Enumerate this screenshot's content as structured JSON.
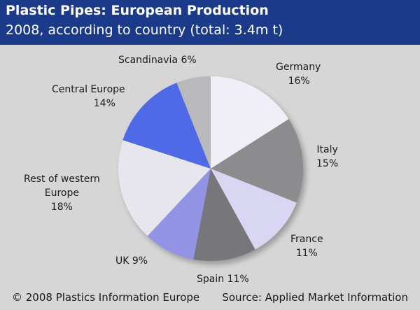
{
  "header": {
    "title": "Plastic Pipes: European Production",
    "subtitle": "2008, according to country (total: 3.4m t)"
  },
  "footer": {
    "copyright": "© 2008 Plastics Information Europe",
    "source": "Source: Applied Market Information"
  },
  "chart_data": {
    "type": "pie",
    "title": "Plastic Pipes: European Production",
    "subtitle": "2008, according to country (total: 3.4m t)",
    "unit": "%",
    "slices": [
      {
        "name": "Germany",
        "value": 16,
        "label_line1": "Germany",
        "label_line2": "16%",
        "color": "#f0eff7"
      },
      {
        "name": "Italy",
        "value": 15,
        "label_line1": "Italy",
        "label_line2": "15%",
        "color": "#8c8c8e"
      },
      {
        "name": "France",
        "value": 11,
        "label_line1": "France",
        "label_line2": "11%",
        "color": "#d9d6f4"
      },
      {
        "name": "Spain",
        "value": 11,
        "label_line1": "Spain 11%",
        "label_line2": "",
        "color": "#77767a"
      },
      {
        "name": "UK",
        "value": 9,
        "label_line1": "UK 9%",
        "label_line2": "",
        "color": "#9393e6"
      },
      {
        "name": "Rest of western Europe",
        "value": 18,
        "label_line1": "Rest of western",
        "label_line2": "Europe",
        "label_line3": "18%",
        "color": "#e6e6ec"
      },
      {
        "name": "Central Europe",
        "value": 14,
        "label_line1": "Central Europe",
        "label_line2": "14%",
        "color": "#4e6ae6"
      },
      {
        "name": "Scandinavia",
        "value": 6,
        "label_line1": "Scandinavia 6%",
        "label_line2": "",
        "color": "#b9b9bc"
      }
    ]
  }
}
